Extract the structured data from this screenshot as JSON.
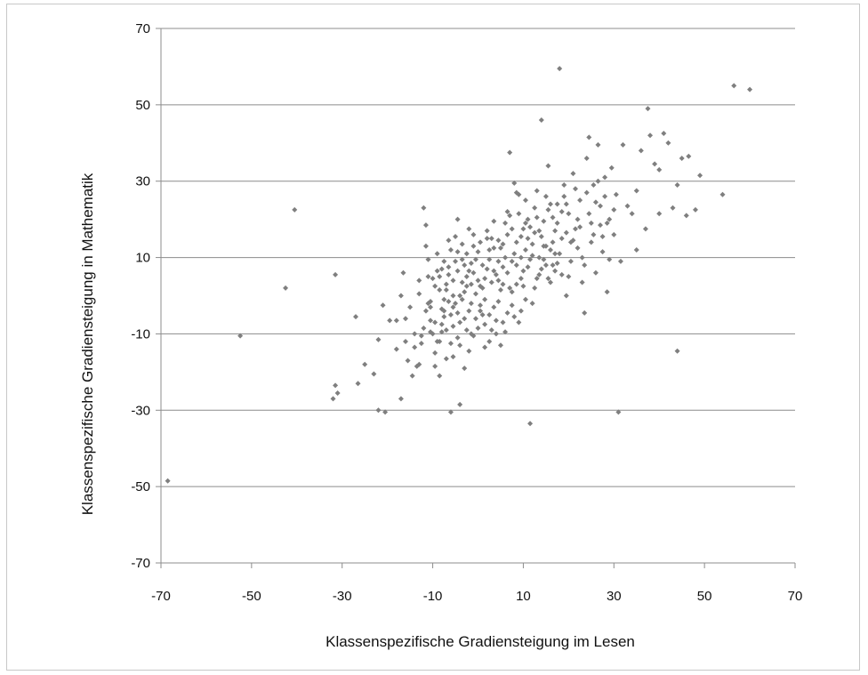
{
  "chart_data": {
    "type": "scatter",
    "title": "",
    "xlabel": "Klassenspezifische Gradiensteigung im Lesen",
    "ylabel": "Klassenspezifische Gradiensteigung in Mathematik",
    "xlim": [
      -70,
      70
    ],
    "ylim": [
      -70,
      70
    ],
    "x_ticks": [
      "-70",
      "-50",
      "-30",
      "-10",
      "10",
      "30",
      "50",
      "70"
    ],
    "y_ticks": [
      "70",
      "50",
      "30",
      "10",
      "-10",
      "-30",
      "-50",
      "-70"
    ],
    "grid": "horizontal",
    "legend": "none",
    "colors": {
      "marker": "#7f7f7f",
      "grid": "#8c8c8c",
      "axis": "#8c8c8c",
      "frame": "#c8c8c8"
    },
    "points": [
      [
        -68.5,
        -48.5
      ],
      [
        -52.5,
        -10.5
      ],
      [
        -42.5,
        2
      ],
      [
        -40.5,
        22.5
      ],
      [
        -31.5,
        5.5
      ],
      [
        -31.5,
        -23.5
      ],
      [
        -31,
        -25.5
      ],
      [
        -32,
        -27
      ],
      [
        -27,
        -5.5
      ],
      [
        -26.5,
        -23
      ],
      [
        -25,
        -18
      ],
      [
        -23,
        -20.5
      ],
      [
        -22,
        -11.5
      ],
      [
        -21,
        -2.5
      ],
      [
        -22,
        -30
      ],
      [
        -20.5,
        -30.5
      ],
      [
        -19.5,
        -6.5
      ],
      [
        -18,
        -6.5
      ],
      [
        -17,
        -27
      ],
      [
        -16.5,
        6
      ],
      [
        -16,
        -6
      ],
      [
        -15.5,
        -17
      ],
      [
        -14.5,
        -21
      ],
      [
        -14,
        -13.5
      ],
      [
        -13,
        0.5
      ],
      [
        -13,
        -18
      ],
      [
        -12.5,
        -12.5
      ],
      [
        -11.5,
        13
      ],
      [
        -11,
        9.5
      ],
      [
        -11,
        5
      ],
      [
        -10.5,
        -3
      ],
      [
        -10.5,
        -9.5
      ],
      [
        -9.5,
        -18.5
      ],
      [
        -9,
        -12
      ],
      [
        -8.5,
        1.5
      ],
      [
        -8,
        7
      ],
      [
        -7.5,
        -5.5
      ],
      [
        -7,
        -9
      ],
      [
        -6.5,
        14.5
      ],
      [
        -6,
        12
      ],
      [
        -5.5,
        4
      ],
      [
        -5,
        -2
      ],
      [
        -4.5,
        20
      ],
      [
        -4,
        -13
      ],
      [
        -3.5,
        9.5
      ],
      [
        -3,
        -6
      ],
      [
        -2.5,
        2.5
      ],
      [
        -2,
        17.5
      ],
      [
        -1.5,
        -10
      ],
      [
        -1,
        6
      ],
      [
        -12,
        23
      ],
      [
        -11.5,
        18.5
      ],
      [
        -10,
        4.5
      ],
      [
        -9.5,
        -15
      ],
      [
        -8.5,
        -21
      ],
      [
        -7,
        -16.5
      ],
      [
        -6,
        -30.5
      ],
      [
        -4,
        -28.5
      ],
      [
        -3,
        -19
      ],
      [
        -2,
        -14.5
      ],
      [
        -1,
        -10.5
      ],
      [
        0,
        11.5
      ],
      [
        0.5,
        -4
      ],
      [
        1,
        8
      ],
      [
        1.5,
        -1
      ],
      [
        2,
        15
      ],
      [
        2.5,
        -12
      ],
      [
        3,
        3.5
      ],
      [
        3.5,
        19.5
      ],
      [
        4,
        -6.5
      ],
      [
        4.5,
        9
      ],
      [
        5,
        1.5
      ],
      [
        5.5,
        13.5
      ],
      [
        6,
        -9.5
      ],
      [
        6.5,
        6
      ],
      [
        7,
        21
      ],
      [
        7.5,
        -2.5
      ],
      [
        8,
        11
      ],
      [
        8.5,
        27
      ],
      [
        9,
        -7
      ],
      [
        9.5,
        15.5
      ],
      [
        10,
        2.5
      ],
      [
        10.5,
        19
      ],
      [
        11,
        7.5
      ],
      [
        11.5,
        -33.5
      ],
      [
        12,
        13.5
      ],
      [
        12.5,
        23
      ],
      [
        13,
        4.5
      ],
      [
        13.5,
        17
      ],
      [
        14,
        46
      ],
      [
        14.5,
        9.5
      ],
      [
        15,
        26
      ],
      [
        15.5,
        34
      ],
      [
        16,
        12
      ],
      [
        16.5,
        20.5
      ],
      [
        17,
        6.5
      ],
      [
        17.5,
        24
      ],
      [
        18,
        59.5
      ],
      [
        18.5,
        15
      ],
      [
        19,
        29
      ],
      [
        19.5,
        0
      ],
      [
        20,
        21.5
      ],
      [
        20.5,
        9
      ],
      [
        21,
        32
      ],
      [
        21.5,
        17.5
      ],
      [
        22,
        12.5
      ],
      [
        22.5,
        25
      ],
      [
        23,
        3.5
      ],
      [
        23.5,
        -4.5
      ],
      [
        24,
        36
      ],
      [
        24.5,
        41.5
      ],
      [
        25,
        19
      ],
      [
        25.5,
        29
      ],
      [
        26,
        6
      ],
      [
        26.5,
        39.5
      ],
      [
        27,
        23.5
      ],
      [
        27.5,
        15.5
      ],
      [
        28,
        31
      ],
      [
        28.5,
        1
      ],
      [
        29,
        20
      ],
      [
        29.5,
        33.5
      ],
      [
        30,
        16
      ],
      [
        30.5,
        26.5
      ],
      [
        31,
        -30.5
      ],
      [
        31.5,
        9
      ],
      [
        32,
        39.5
      ],
      [
        33,
        23.5
      ],
      [
        34,
        21.5
      ],
      [
        35,
        27.5
      ],
      [
        35,
        12
      ],
      [
        36,
        38
      ],
      [
        37,
        17.5
      ],
      [
        37.5,
        49
      ],
      [
        38,
        42
      ],
      [
        39,
        34.5
      ],
      [
        40,
        21.5
      ],
      [
        40,
        33
      ],
      [
        41,
        42.5
      ],
      [
        42,
        40
      ],
      [
        43,
        23
      ],
      [
        44,
        29
      ],
      [
        44,
        -14.5
      ],
      [
        45,
        36
      ],
      [
        46,
        21
      ],
      [
        46.5,
        36.5
      ],
      [
        48,
        22.5
      ],
      [
        49,
        31.5
      ],
      [
        54,
        26.5
      ],
      [
        56.5,
        55
      ],
      [
        60,
        54
      ],
      [
        -5.5,
        -3
      ],
      [
        -4.5,
        6.5
      ],
      [
        -3.5,
        -1
      ],
      [
        -2.5,
        11
      ],
      [
        -1.5,
        3
      ],
      [
        -0.5,
        -6
      ],
      [
        0.5,
        14
      ],
      [
        1.5,
        -7.5
      ],
      [
        2.5,
        9.5
      ],
      [
        3.5,
        -3
      ],
      [
        4.5,
        4
      ],
      [
        5.5,
        -7
      ],
      [
        6.5,
        16
      ],
      [
        7.5,
        1
      ],
      [
        8.5,
        8
      ],
      [
        9.5,
        -4
      ],
      [
        10.5,
        12
      ],
      [
        11.5,
        18
      ],
      [
        12.5,
        2
      ],
      [
        13.5,
        10
      ],
      [
        14.5,
        19.5
      ],
      [
        15.5,
        4.5
      ],
      [
        16.5,
        14
      ],
      [
        17.5,
        8.5
      ],
      [
        18.5,
        22
      ],
      [
        19.5,
        16.5
      ],
      [
        -8,
        -3.5
      ],
      [
        -7.5,
        9
      ],
      [
        -6.5,
        -1.5
      ],
      [
        -5.5,
        -8
      ],
      [
        -4.5,
        11.5
      ],
      [
        -3.5,
        3.5
      ],
      [
        -2.5,
        -9
      ],
      [
        -1.5,
        8.5
      ],
      [
        -0.5,
        0.5
      ],
      [
        0.5,
        -2.5
      ],
      [
        1.5,
        4.5
      ],
      [
        2.5,
        -5
      ],
      [
        3.5,
        12.5
      ],
      [
        4.5,
        -1.5
      ],
      [
        5.5,
        7.5
      ],
      [
        6.5,
        -4.5
      ],
      [
        7.5,
        17.5
      ],
      [
        8.5,
        3
      ],
      [
        9.5,
        10
      ],
      [
        10.5,
        -1
      ],
      [
        -9,
        6.5
      ],
      [
        -8,
        -9.5
      ],
      [
        -7,
        3
      ],
      [
        -6,
        -12.5
      ],
      [
        -5,
        15.5
      ],
      [
        -4,
        0
      ],
      [
        -3,
        8
      ],
      [
        -2,
        -4
      ],
      [
        -1,
        13
      ],
      [
        0,
        -8.5
      ],
      [
        1,
        2
      ],
      [
        2,
        17
      ],
      [
        3,
        -9
      ],
      [
        4,
        5.5
      ],
      [
        5,
        -13
      ],
      [
        6,
        10
      ],
      [
        7,
        2
      ],
      [
        8,
        -5.5
      ],
      [
        9,
        21.5
      ],
      [
        10,
        6.5
      ],
      [
        11,
        15
      ],
      [
        12,
        -2
      ],
      [
        13,
        20.5
      ],
      [
        14,
        7
      ],
      [
        15,
        13
      ],
      [
        16,
        3.5
      ],
      [
        17,
        17
      ],
      [
        18,
        11
      ],
      [
        19,
        26
      ],
      [
        20,
        5
      ],
      [
        21,
        14.5
      ],
      [
        22,
        20
      ],
      [
        23,
        10
      ],
      [
        24,
        27
      ],
      [
        25,
        14
      ],
      [
        26,
        24.5
      ],
      [
        27,
        18.5
      ],
      [
        28,
        26
      ],
      [
        29,
        9.5
      ],
      [
        30,
        22.5
      ],
      [
        -10.5,
        -6.5
      ],
      [
        -9.5,
        2.5
      ],
      [
        -8.5,
        -12
      ],
      [
        -7.5,
        -1
      ],
      [
        -6.5,
        5.5
      ],
      [
        -5.5,
        -16
      ],
      [
        -4.5,
        -4.5
      ],
      [
        -3.5,
        13.5
      ],
      [
        -2.5,
        5
      ],
      [
        -1.5,
        -2
      ],
      [
        -0.5,
        9.5
      ],
      [
        0.5,
        2.5
      ],
      [
        1.5,
        -13.5
      ],
      [
        2.5,
        12
      ],
      [
        3.5,
        6.5
      ],
      [
        4.5,
        14.5
      ],
      [
        5.5,
        3
      ],
      [
        6.5,
        22
      ],
      [
        7.5,
        9
      ],
      [
        8.5,
        14
      ],
      [
        9.5,
        4.5
      ],
      [
        10.5,
        25
      ],
      [
        11.5,
        9.5
      ],
      [
        12.5,
        16.5
      ],
      [
        13.5,
        5.5
      ],
      [
        14.5,
        13
      ],
      [
        15.5,
        22.5
      ],
      [
        16.5,
        8
      ],
      [
        17.5,
        19
      ],
      [
        18.5,
        5.5
      ],
      [
        19.5,
        24
      ],
      [
        20.5,
        14
      ],
      [
        21.5,
        28
      ],
      [
        22.5,
        18
      ],
      [
        23.5,
        8
      ],
      [
        24.5,
        21.5
      ],
      [
        25.5,
        16
      ],
      [
        26.5,
        30
      ],
      [
        27.5,
        11.5
      ],
      [
        28.5,
        19
      ],
      [
        8,
        29.5
      ],
      [
        9,
        26.5
      ],
      [
        10,
        17.5
      ],
      [
        11,
        20
      ],
      [
        12,
        10.5
      ],
      [
        13,
        27.5
      ],
      [
        14,
        15.5
      ],
      [
        15,
        8
      ],
      [
        16,
        24
      ],
      [
        17,
        11
      ],
      [
        7,
        37.5
      ],
      [
        6,
        19
      ],
      [
        5,
        12.5
      ],
      [
        4,
        -10
      ],
      [
        3,
        15
      ],
      [
        2,
        7
      ],
      [
        1,
        -5
      ],
      [
        0,
        4
      ],
      [
        -1,
        16
      ],
      [
        -2,
        6.5
      ],
      [
        -3,
        1
      ],
      [
        -4,
        -7
      ],
      [
        -5,
        9
      ],
      [
        -6,
        -5
      ],
      [
        -7,
        1.5
      ],
      [
        -8,
        -7.5
      ],
      [
        -9,
        11
      ],
      [
        -10,
        -10
      ],
      [
        -11,
        -2
      ],
      [
        -12,
        -8.5
      ],
      [
        -13,
        4
      ],
      [
        -14,
        -10
      ],
      [
        -15,
        -3
      ],
      [
        -16,
        -12
      ],
      [
        -17,
        0
      ],
      [
        -18,
        -14
      ],
      [
        -13.5,
        -18.5
      ],
      [
        -12.5,
        -10.5
      ],
      [
        -11.5,
        -4
      ],
      [
        -10.5,
        -1.5
      ],
      [
        -9.5,
        -7
      ],
      [
        -8.5,
        5
      ],
      [
        -7.5,
        -4
      ],
      [
        -6.5,
        7.5
      ],
      [
        -5.5,
        0
      ],
      [
        -4.5,
        -11
      ]
    ]
  }
}
